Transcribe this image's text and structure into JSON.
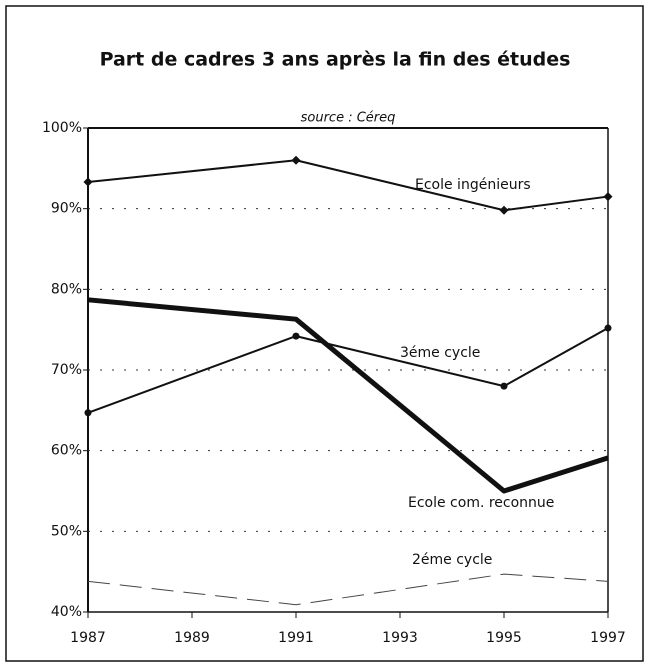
{
  "chart_data": {
    "type": "line",
    "title": "Part de cadres 3 ans après la fin des études",
    "subtitle": "source : Céreq",
    "x": [
      1987,
      1991,
      1995,
      1997
    ],
    "xlim": [
      1987,
      1997
    ],
    "xticks": [
      1987,
      1989,
      1991,
      1993,
      1995,
      1997
    ],
    "ylim": [
      40,
      100
    ],
    "yticks": [
      {
        "value": 40,
        "label": "40%"
      },
      {
        "value": 50,
        "label": "50%"
      },
      {
        "value": 60,
        "label": "60%"
      },
      {
        "value": 70,
        "label": "70%"
      },
      {
        "value": 80,
        "label": "80%"
      },
      {
        "value": 90,
        "label": "90%"
      },
      {
        "value": 100,
        "label": "100%"
      }
    ],
    "grid": true,
    "series": [
      {
        "name": "Ecole ingénieurs",
        "color": "#111111",
        "values": [
          93.3,
          96.0,
          89.8,
          91.5
        ],
        "marker": "diamond",
        "width": 2,
        "dash": false
      },
      {
        "name": "3éme cycle",
        "color": "#111111",
        "values": [
          64.7,
          74.2,
          68.0,
          75.2
        ],
        "marker": "circle",
        "width": 2,
        "dash": false
      },
      {
        "name": "Ecole com. reconnue",
        "color": "#111111",
        "values": [
          78.7,
          76.3,
          55.0,
          59.1
        ],
        "marker": null,
        "width": 5,
        "dash": false
      },
      {
        "name": "2éme cycle",
        "color": "#444444",
        "values": [
          43.8,
          40.9,
          44.7,
          43.8
        ],
        "marker": null,
        "width": 1,
        "dash": true
      }
    ]
  }
}
